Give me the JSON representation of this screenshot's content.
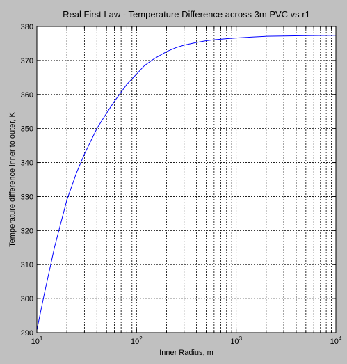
{
  "chart_data": {
    "type": "line",
    "title": "Real First Law - Temperature Difference across 3m PVC vs r1",
    "xlabel": "Inner Radius, m",
    "ylabel": "Temperature difference inner to outer, K",
    "xscale": "log",
    "xlim": [
      10,
      10000
    ],
    "ylim": [
      290,
      380
    ],
    "grid": true,
    "legend": "none",
    "x_ticks": [
      {
        "base": "10",
        "exp": "1",
        "value": 10
      },
      {
        "base": "10",
        "exp": "2",
        "value": 100
      },
      {
        "base": "10",
        "exp": "3",
        "value": 1000
      },
      {
        "base": "10",
        "exp": "4",
        "value": 10000
      }
    ],
    "y_ticks": [
      290,
      300,
      310,
      320,
      330,
      340,
      350,
      360,
      370,
      380
    ],
    "line_color": "#0000ff",
    "series": [
      {
        "x": [
          10,
          12,
          15,
          20,
          25,
          30,
          40,
          50,
          60,
          80,
          100,
          120,
          150,
          200,
          250,
          300,
          400,
          500,
          600,
          800,
          1000,
          1500,
          2000,
          3000,
          5000,
          10000
        ],
        "values": [
          290.8,
          302,
          315,
          329,
          337,
          342.5,
          350,
          354.5,
          358,
          363,
          366,
          368.5,
          370.5,
          372.6,
          373.8,
          374.5,
          375.3,
          375.8,
          376.1,
          376.4,
          376.6,
          376.9,
          377.1,
          377.2,
          377.3,
          377.4
        ]
      }
    ]
  }
}
